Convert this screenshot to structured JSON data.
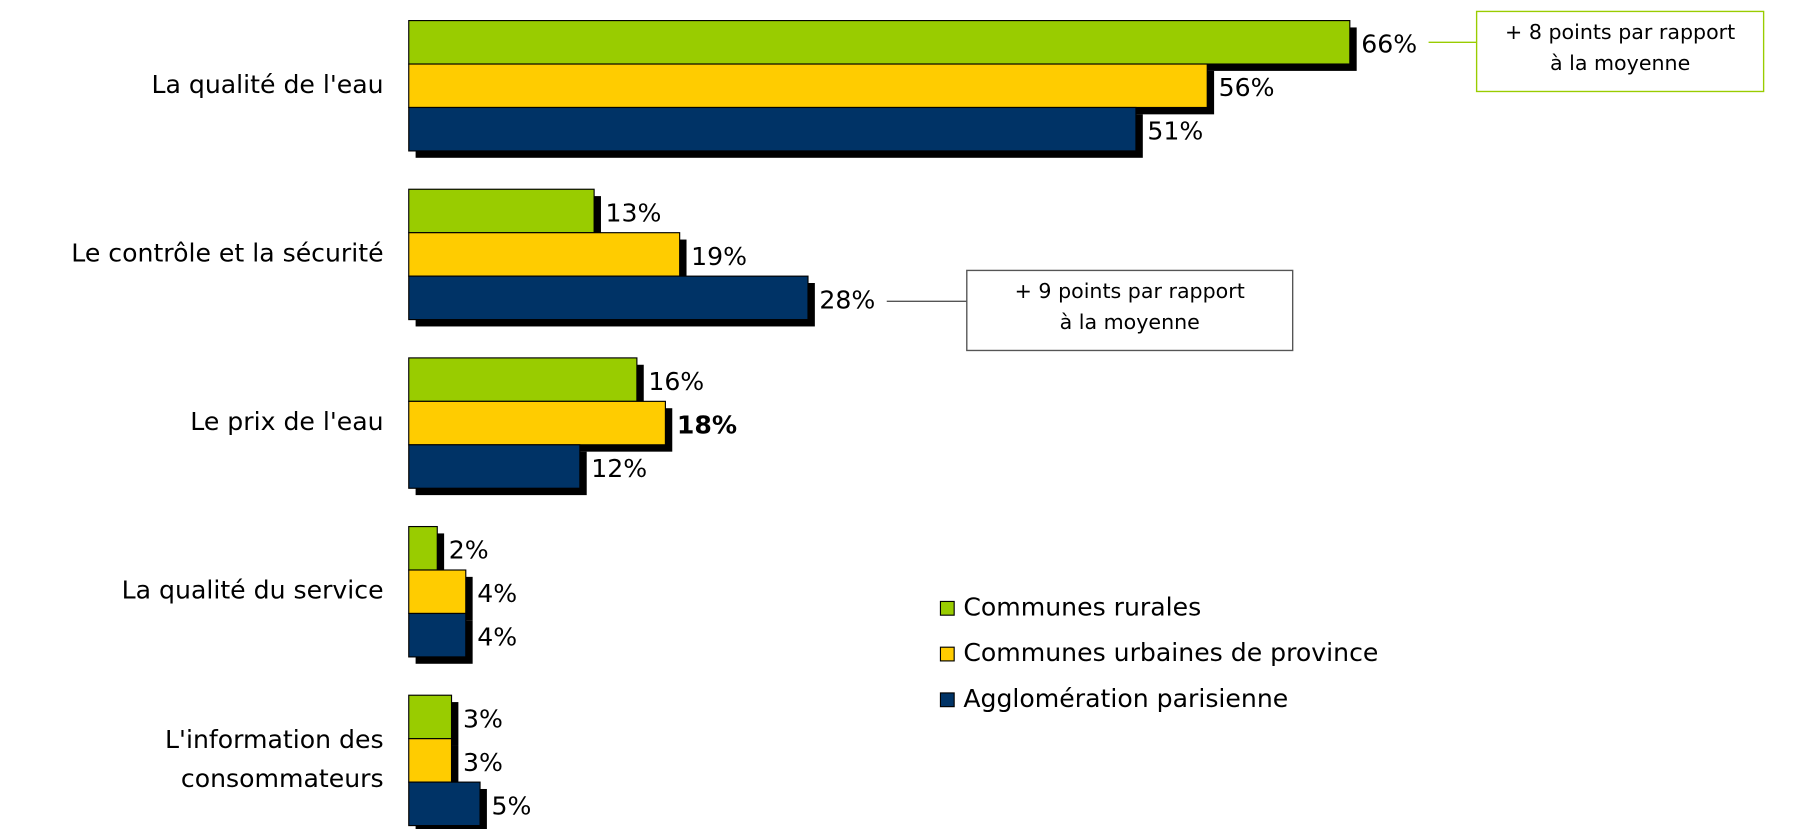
{
  "chart_data": {
    "type": "bar",
    "orientation": "horizontal",
    "categories": [
      "La qualité de l'eau",
      "Le contrôle et la sécurité",
      "Le prix de l'eau",
      "La qualité du service",
      "L'information des consommateurs"
    ],
    "series": [
      {
        "name": "Communes rurales",
        "color": "#99cc00",
        "values": [
          66,
          13,
          16,
          2,
          3
        ],
        "value_labels": [
          "66%",
          "13%",
          "16%",
          "2%",
          "3%"
        ]
      },
      {
        "name": "Communes urbaines de province",
        "color": "#ffcc00",
        "values": [
          56,
          19,
          18,
          4,
          3
        ],
        "value_labels": [
          "56%",
          "19%",
          "18%",
          "4%",
          "3%"
        ],
        "bold_index": 2
      },
      {
        "name": "Agglomération parisienne",
        "color": "#003366",
        "values": [
          51,
          28,
          12,
          4,
          5
        ],
        "value_labels": [
          "51%",
          "28%",
          "12%",
          "4%",
          "5%"
        ]
      }
    ],
    "annotations": [
      {
        "lines": [
          "+ 8 points par rapport",
          "à la moyenne"
        ],
        "color": "#99cc00",
        "series": 0,
        "index": 0
      },
      {
        "lines": [
          "+ 9 points par rapport",
          "à la moyenne"
        ],
        "color": "#555555",
        "series": 2,
        "index": 1
      }
    ],
    "legend": "right"
  }
}
